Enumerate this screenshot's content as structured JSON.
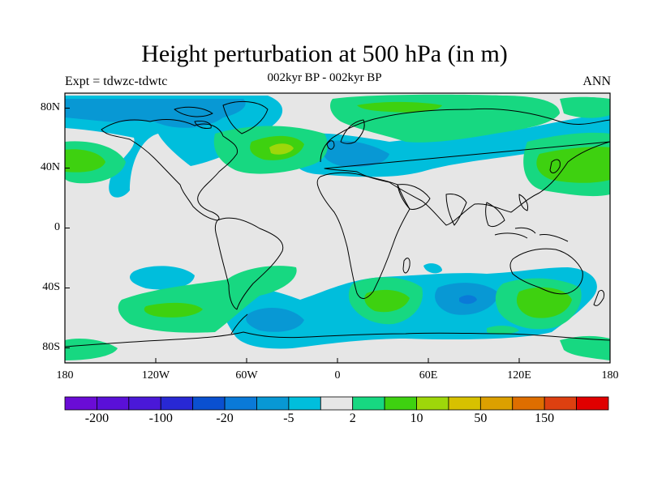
{
  "title": "Height perturbation at 500 hPa (in m)",
  "subtitle": "002kyr BP - 002kyr BP",
  "experiment": "Expt = tdwzc-tdwtc",
  "season": "ANN",
  "map": {
    "lat_ticks": [
      {
        "id": "80N",
        "value": 80,
        "label": "80N"
      },
      {
        "id": "40N",
        "value": 40,
        "label": "40N"
      },
      {
        "id": "0",
        "value": 0,
        "label": "0"
      },
      {
        "id": "40S",
        "value": -40,
        "label": "40S"
      },
      {
        "id": "80S",
        "value": -80,
        "label": "80S"
      }
    ],
    "lon_ticks": [
      {
        "id": "180w",
        "value": -180,
        "label": "180"
      },
      {
        "id": "120w",
        "value": -120,
        "label": "120W"
      },
      {
        "id": "60w",
        "value": -60,
        "label": "60W"
      },
      {
        "id": "0",
        "value": 0,
        "label": "0"
      },
      {
        "id": "60e",
        "value": 60,
        "label": "60E"
      },
      {
        "id": "120e",
        "value": 120,
        "label": "120E"
      },
      {
        "id": "180e",
        "value": 180,
        "label": "180"
      }
    ],
    "lat_range": [
      -90,
      90
    ],
    "lon_range": [
      -180,
      180
    ]
  },
  "colorbar": {
    "colors": [
      "#6a0cd6",
      "#5a10d8",
      "#4a18d8",
      "#2828d4",
      "#0a50d0",
      "#0a7ad8",
      "#0898d4",
      "#00bedc",
      "#e6e6e6",
      "#17d881",
      "#3ed110",
      "#9ed70a",
      "#d7c100",
      "#dca000",
      "#de6e00",
      "#dd4010",
      "#e00000"
    ],
    "labels": [
      {
        "id": "m200",
        "boundary": 1,
        "label": "-200"
      },
      {
        "id": "m100",
        "boundary": 3,
        "label": "-100"
      },
      {
        "id": "m20",
        "boundary": 5,
        "label": "-20"
      },
      {
        "id": "m5",
        "boundary": 7,
        "label": "-5"
      },
      {
        "id": "p2",
        "boundary": 9,
        "label": "2"
      },
      {
        "id": "p10",
        "boundary": 11,
        "label": "10"
      },
      {
        "id": "p50",
        "boundary": 13,
        "label": "50"
      },
      {
        "id": "p150",
        "boundary": 15,
        "label": "150"
      }
    ]
  },
  "colors": {
    "background_field": "#e6e6e6",
    "level_minus_5": "#00bedc",
    "level_minus_20": "#0898d4",
    "level_minus_50": "#0a7ad8",
    "level_2": "#17d881",
    "level_10": "#3ed110",
    "level_20": "#9ed70a",
    "coastline": "#000000"
  }
}
